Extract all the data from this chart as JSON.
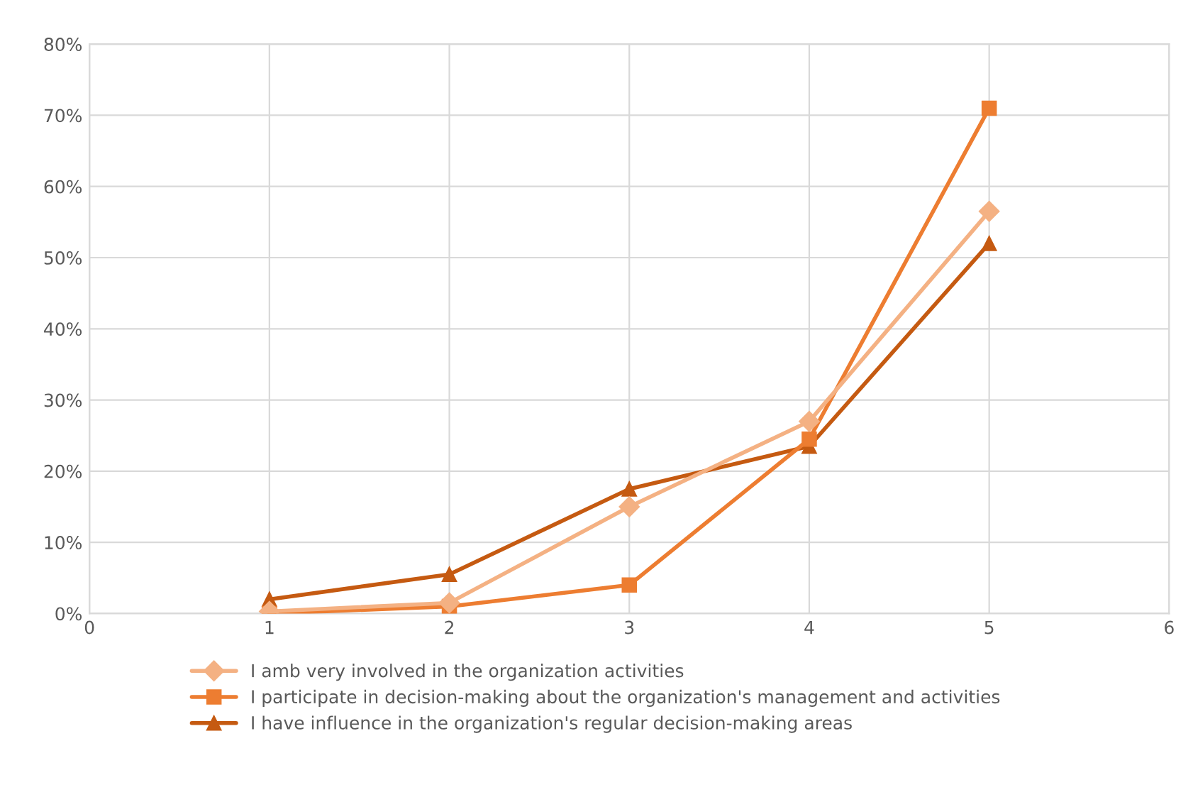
{
  "chart_data": {
    "type": "line",
    "x": [
      1,
      2,
      3,
      4,
      5
    ],
    "series": [
      {
        "name": "I amb very involved in the organization activities",
        "color": "#f4b183",
        "marker": "diamond",
        "values": [
          0.3,
          1.5,
          15,
          27,
          56.5
        ]
      },
      {
        "name": "I participate in decision-making about the organization's management and activities",
        "color": "#ed7d31",
        "marker": "square",
        "values": [
          0,
          1,
          4,
          24.5,
          71
        ]
      },
      {
        "name": "I have influence in the organization's regular decision-making areas",
        "color": "#c55a11",
        "marker": "triangle",
        "values": [
          2,
          5.5,
          17.5,
          23.5,
          52
        ]
      }
    ],
    "xlim": [
      0,
      6
    ],
    "xticks": [
      0,
      1,
      2,
      3,
      4,
      5,
      6
    ],
    "ylim": [
      0,
      80
    ],
    "yticks": [
      {
        "value": 0,
        "label": "0%"
      },
      {
        "value": 10,
        "label": "10%"
      },
      {
        "value": 20,
        "label": "20%"
      },
      {
        "value": 30,
        "label": "30%"
      },
      {
        "value": 40,
        "label": "40%"
      },
      {
        "value": 50,
        "label": "50%"
      },
      {
        "value": 60,
        "label": "60%"
      },
      {
        "value": 70,
        "label": "70%"
      },
      {
        "value": 80,
        "label": "80%"
      }
    ],
    "grid": true,
    "legend": "bottom"
  }
}
